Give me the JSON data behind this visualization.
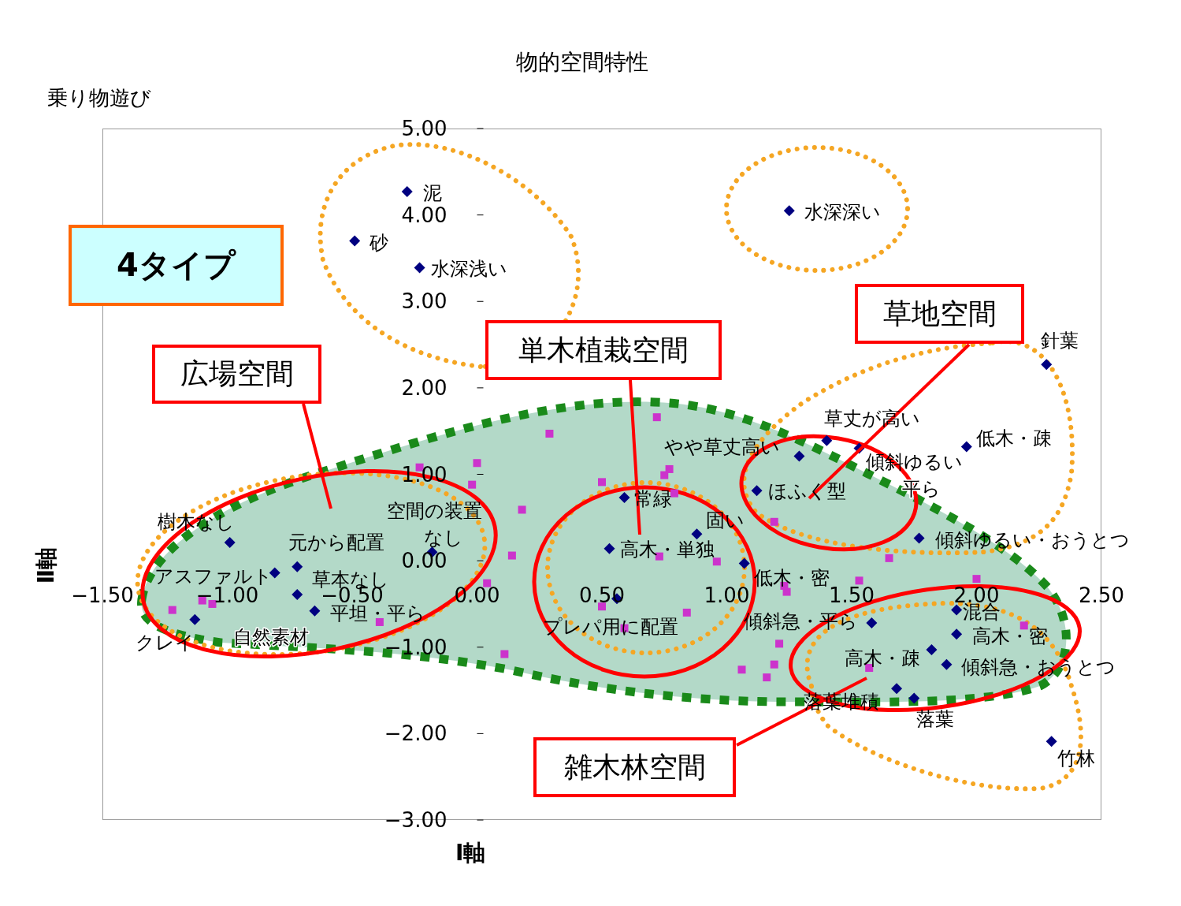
{
  "chart_data": {
    "type": "scatter",
    "title": "物的空間特性",
    "subtitle": "乗り物遊び",
    "xlabel": "Ⅰ軸",
    "ylabel": "Ⅱ軸",
    "xlim": [
      -1.5,
      2.5
    ],
    "xticks": [
      {
        "value": -1.5,
        "label": "−1.50"
      },
      {
        "value": -1,
        "label": "−1.00"
      },
      {
        "value": -0.5,
        "label": "−0.50"
      },
      {
        "value": 0,
        "label": "0.00"
      },
      {
        "value": 0.5,
        "label": "0.50"
      },
      {
        "value": 1,
        "label": "1.00"
      },
      {
        "value": 1.5,
        "label": "1.50"
      },
      {
        "value": 2,
        "label": "2.00"
      },
      {
        "value": 2.5,
        "label": "2.50"
      }
    ],
    "ylim": [
      -3,
      5
    ],
    "yticks": [
      {
        "value": -3,
        "label": "−3.00"
      },
      {
        "value": -2,
        "label": "−2.00"
      },
      {
        "value": -1,
        "label": "−1.00"
      },
      {
        "value": 0,
        "label": "0.00"
      },
      {
        "value": 1,
        "label": "1.00"
      },
      {
        "value": 2,
        "label": "2.00"
      },
      {
        "value": 3,
        "label": "3.00"
      },
      {
        "value": 4,
        "label": "4.00"
      },
      {
        "value": 5,
        "label": "5.00"
      }
    ],
    "series": [
      {
        "color": "#000080",
        "marker": "diamond",
        "x": [
          -0.28,
          -0.49,
          -0.23,
          1.25,
          2.28,
          1.96,
          1.4,
          1.53,
          1.29,
          1.12,
          1.77,
          0.88,
          0.59,
          0.53,
          1.07,
          0.56,
          1.58,
          1.92,
          1.92,
          1.82,
          1.88,
          1.68,
          1.75,
          2.3,
          -0.99,
          -0.81,
          -0.72,
          -0.72,
          -0.65,
          -1.13,
          -0.18
        ],
        "values": [
          4.27,
          3.7,
          3.39,
          4.05,
          2.27,
          1.32,
          1.39,
          1.3,
          1.21,
          0.81,
          0.26,
          0.31,
          0.73,
          0.14,
          -0.03,
          -0.44,
          -0.72,
          -0.57,
          -0.85,
          -1.03,
          -1.2,
          -1.48,
          -1.59,
          -2.09,
          0.21,
          -0.14,
          -0.07,
          -0.39,
          -0.58,
          -0.68,
          0.1
        ]
      },
      {
        "color": "#cc33cc",
        "marker": "square",
        "x": [
          0.29,
          0.72,
          0.0,
          -0.23,
          -0.02,
          0.18,
          0.14,
          0.04,
          0.77,
          0.75,
          0.5,
          0.79,
          0.73,
          0.96,
          1.19,
          1.23,
          1.24,
          0.5,
          0.84,
          0.59,
          0.11,
          1.21,
          1.19,
          1.06,
          1.16,
          1.53,
          2.0,
          1.57,
          2.19,
          1.65,
          -1.1,
          -1.06,
          -1.22,
          -0.39
        ],
        "values": [
          1.47,
          1.66,
          1.13,
          1.08,
          0.88,
          0.59,
          0.06,
          -0.26,
          1.06,
          0.99,
          0.91,
          0.78,
          0.05,
          -0.01,
          0.45,
          -0.29,
          -0.36,
          -0.53,
          -0.6,
          -0.78,
          -1.08,
          -0.96,
          -1.2,
          -1.26,
          -1.35,
          -0.23,
          -0.21,
          -1.24,
          -0.75,
          0.03,
          -0.46,
          -0.5,
          -0.57,
          -0.71
        ]
      }
    ],
    "annotations": [
      {
        "text": "泥",
        "x": -0.28,
        "y": 4.27
      },
      {
        "text": "砂",
        "x": -0.49,
        "y": 3.7
      },
      {
        "text": "水深浅い",
        "x": -0.23,
        "y": 3.39
      },
      {
        "text": "水深深い",
        "x": 1.25,
        "y": 4.05
      },
      {
        "text": "針葉",
        "x": 2.28,
        "y": 2.27
      },
      {
        "text": "低木・疎",
        "x": 1.96,
        "y": 1.32
      },
      {
        "text": "草丈が高い",
        "x": 1.4,
        "y": 1.39
      },
      {
        "text": "傾斜ゆるい",
        "x": 1.53,
        "y": 1.3
      },
      {
        "text": "やや草丈高い",
        "x": 1.29,
        "y": 1.21
      },
      {
        "text": "ほふく型",
        "x": 1.12,
        "y": 0.81
      },
      {
        "text": "傾斜ゆるい・おうとつ",
        "x": 1.77,
        "y": 0.26
      },
      {
        "text": "固い",
        "x": 0.88,
        "y": 0.31
      },
      {
        "text": "常緑",
        "x": 0.59,
        "y": 0.73
      },
      {
        "text": "高木・単独",
        "x": 0.53,
        "y": 0.14
      },
      {
        "text": "低木・密",
        "x": 1.07,
        "y": -0.03
      },
      {
        "text": "プレパ用に配置",
        "x": 0.56,
        "y": -0.44
      },
      {
        "text": "傾斜急・平ら",
        "x": 1.58,
        "y": -0.72
      },
      {
        "text": "混合",
        "x": 1.92,
        "y": -0.57
      },
      {
        "text": "高木・密",
        "x": 1.92,
        "y": -0.85
      },
      {
        "text": "高木・疎",
        "x": 1.82,
        "y": -1.03
      },
      {
        "text": "傾斜急・おうとつ",
        "x": 1.88,
        "y": -1.2
      },
      {
        "text": "落葉堆積",
        "x": 1.68,
        "y": -1.48
      },
      {
        "text": "落葉",
        "x": 1.75,
        "y": -1.59
      },
      {
        "text": "竹林",
        "x": 2.3,
        "y": -2.09
      },
      {
        "text": "樹木なし",
        "x": -0.99,
        "y": 0.21
      },
      {
        "text": "元から配置",
        "x": -0.72,
        "y": -0.07
      },
      {
        "text": "空間の装置",
        "x": -0.18,
        "y": 0.1
      },
      {
        "text": "なし",
        "x": -0.18,
        "y": 0.1
      },
      {
        "text": "アスファルト",
        "x": -0.81,
        "y": -0.14
      },
      {
        "text": "草本なし",
        "x": -0.72,
        "y": -0.39
      },
      {
        "text": "平坦・平ら",
        "x": -0.65,
        "y": -0.58
      },
      {
        "text": "クレイ",
        "x": -1.13,
        "y": -0.68
      },
      "平ら",
      "自然素材",
      "4タイプ",
      "広場空間",
      "単木植栽空間",
      "草地空間",
      "雑木林空間"
    ]
  }
}
